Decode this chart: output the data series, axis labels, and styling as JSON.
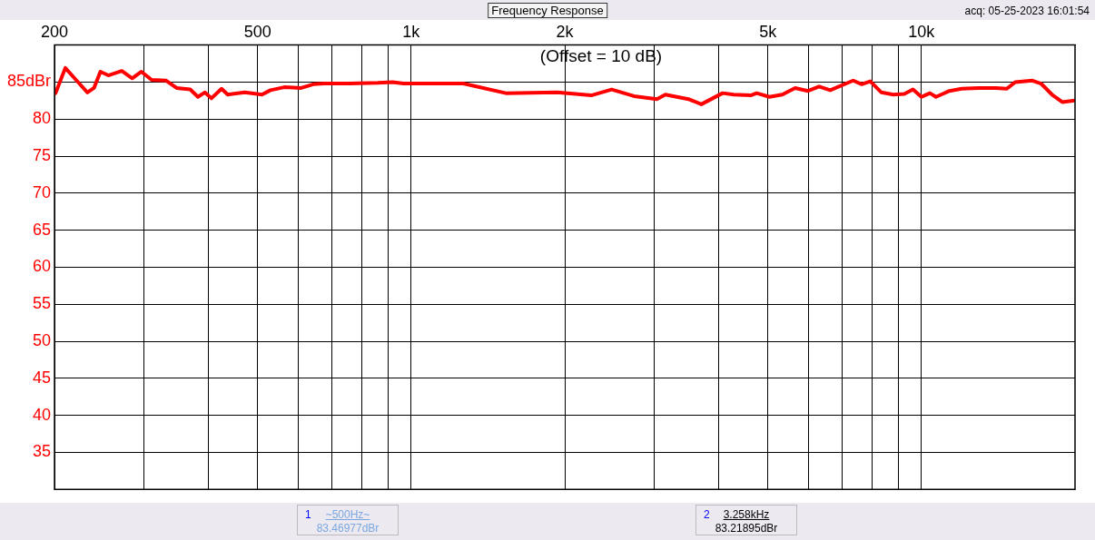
{
  "chart_data": {
    "type": "line",
    "title": "Frequency Response",
    "annotations": [
      "(Offset = 10 dB)",
      "acq: 05-25-2023 16:01:54",
      "1",
      "~500Hz~",
      "83.46977dBr",
      "2",
      "3.258kHz",
      "83.21895dBr"
    ],
    "x": [
      201,
      210,
      221,
      232,
      239,
      246,
      255,
      271,
      284,
      296,
      310,
      331,
      347,
      369,
      382,
      394,
      406,
      425,
      437,
      472,
      510,
      530,
      564,
      609,
      643,
      675,
      758,
      861,
      919,
      966,
      1265,
      1533,
      1931,
      2254,
      2472,
      2733,
      3031,
      3149,
      3494,
      3704,
      4078,
      4287,
      4630,
      4755,
      5037,
      5337,
      5656,
      5993,
      6303,
      6626,
      7350,
      7638,
      7940,
      8347,
      8808,
      9260,
      9626,
      10000,
      10390,
      10680,
      11350,
      11990,
      12950,
      13980,
      14700,
      15280,
      16500,
      17150,
      18030,
      18880,
      20000
    ],
    "series": [
      {
        "color": "#ff0000",
        "values": [
          83.5,
          86.9,
          85.2,
          83.6,
          84.2,
          86.4,
          85.9,
          86.5,
          85.5,
          86.4,
          85.3,
          85.2,
          84.2,
          84.0,
          83.0,
          83.6,
          82.8,
          84.1,
          83.3,
          83.6,
          83.3,
          83.9,
          84.3,
          84.2,
          84.7,
          84.8,
          84.8,
          84.9,
          85.0,
          84.8,
          84.8,
          83.5,
          83.6,
          83.2,
          84.0,
          83.1,
          82.7,
          83.3,
          82.7,
          82.0,
          83.5,
          83.3,
          83.2,
          83.5,
          83.0,
          83.3,
          84.2,
          83.8,
          84.4,
          83.9,
          85.2,
          84.7,
          85.1,
          83.6,
          83.3,
          83.4,
          84.0,
          83.0,
          83.5,
          83.0,
          83.8,
          84.1,
          84.2,
          84.2,
          84.1,
          85.0,
          85.2,
          84.8,
          83.3,
          82.3,
          82.5
        ]
      }
    ],
    "xlim": [
      200,
      20000
    ],
    "ylim": [
      30,
      90
    ],
    "xticks": [
      200,
      {
        "value": 300,
        "label": null
      },
      {
        "value": 400,
        "label": null
      },
      500,
      {
        "value": 600,
        "label": null
      },
      {
        "value": 700,
        "label": null
      },
      {
        "value": 800,
        "label": null
      },
      {
        "value": 900,
        "label": null
      },
      {
        "value": 1000,
        "label": "1k"
      },
      {
        "value": 2000,
        "label": "2k"
      },
      {
        "value": 3000,
        "label": null
      },
      {
        "value": 4000,
        "label": null
      },
      {
        "value": 5000,
        "label": "5k"
      },
      {
        "value": 6000,
        "label": null
      },
      {
        "value": 7000,
        "label": null
      },
      {
        "value": 8000,
        "label": null
      },
      {
        "value": 9000,
        "label": null
      },
      {
        "value": 10000,
        "label": "10k"
      }
    ],
    "yticks": [
      35,
      40,
      45,
      50,
      55,
      60,
      65,
      70,
      75,
      80,
      {
        "value": 85,
        "label": "85dBr"
      }
    ],
    "log": "x",
    "grid": true,
    "legend": false,
    "marker": "none",
    "line_style": "solid"
  }
}
